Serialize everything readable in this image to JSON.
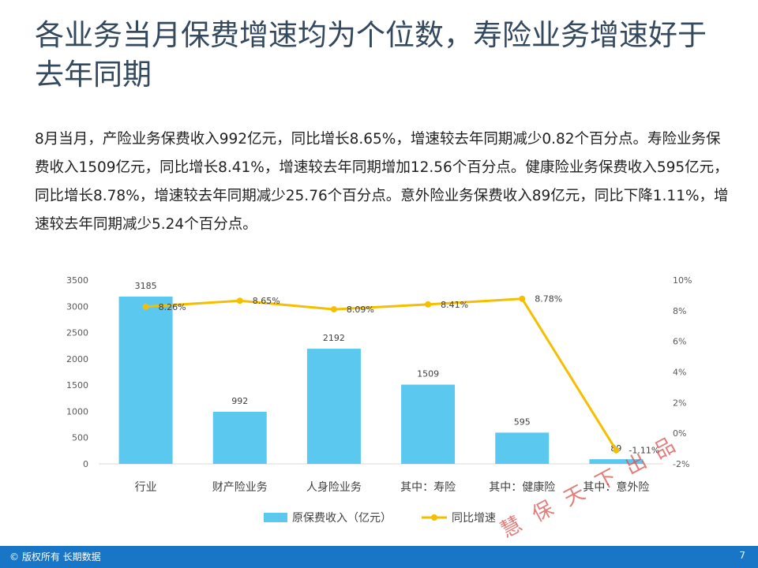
{
  "slide": {
    "title": "各业务当月保费增速均为个位数，寿险业务增速好于去年同期",
    "summary": "8月当月，产险业务保费收入992亿元，同比增长8.65%，增速较去年同期减少0.82个百分点。寿险业务保费收入1509亿元，同比增长8.41%，增速较去年同期增加12.56个百分点。健康险业务保费收入595亿元，同比增长8.78%，增速较去年同期减少25.76个百分点。意外险业务保费收入89亿元，同比下降1.11%，增速较去年同期减少5.24个百分点。"
  },
  "chart_data": {
    "type": "bar",
    "categories": [
      "行业",
      "财产险业务",
      "人身险业务",
      "其中：寿险",
      "其中：健康险",
      "其中：意外险"
    ],
    "series": [
      {
        "name": "原保费收入（亿元）",
        "type": "bar",
        "axis": "left",
        "values": [
          3185,
          992,
          2192,
          1509,
          595,
          89
        ],
        "labels": [
          "3185",
          "992",
          "2192",
          "1509",
          "595",
          "89"
        ]
      },
      {
        "name": "同比增速",
        "type": "line",
        "axis": "right",
        "values": [
          8.26,
          8.65,
          8.09,
          8.41,
          8.78,
          -1.11
        ],
        "labels": [
          "8.26%",
          "8.65%",
          "8.09%",
          "8.41%",
          "8.78%",
          "-1.11%"
        ]
      }
    ],
    "y_left": {
      "min": 0,
      "max": 3500,
      "ticks": [
        "0",
        "500",
        "1000",
        "1500",
        "2000",
        "2500",
        "3000",
        "3500"
      ]
    },
    "y_right": {
      "min": -2,
      "max": 10,
      "ticks": [
        "-2%",
        "0%",
        "2%",
        "4%",
        "6%",
        "8%",
        "10%"
      ]
    },
    "legend_position": "bottom",
    "grid": false,
    "colors": {
      "bar": "#5bc8f0",
      "line": "#f5bf00",
      "axis_text": "#595959",
      "axis_line": "#d9d9d9"
    }
  },
  "watermark": {
    "text": "慧保天下出品",
    "color": "#d9534f"
  },
  "footer": {
    "copyright": "© 版权所有 长期数据",
    "page_number": "7",
    "color": "#1976c6"
  }
}
